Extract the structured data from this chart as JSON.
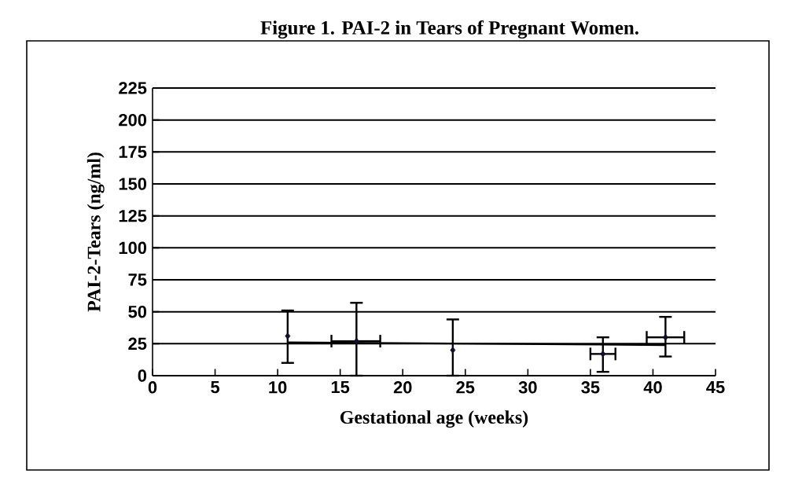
{
  "chart_data": {
    "type": "scatter",
    "title": "Figure 1. PAI-2 in Tears of Pregnant Women.",
    "xlabel": "Gestational age (weeks)",
    "ylabel": "PAI-2-Tears (ng/ml)",
    "xlim": [
      0,
      45
    ],
    "xticks": [
      0,
      5,
      10,
      15,
      20,
      25,
      30,
      35,
      40,
      45
    ],
    "ylim": [
      0,
      225
    ],
    "yticks": [
      0,
      25,
      50,
      75,
      100,
      125,
      150,
      175,
      200,
      225
    ],
    "grid": "y",
    "marker": "diamond",
    "series": [
      {
        "color": "#10102a",
        "x": [
          10.8,
          16.3,
          24,
          36,
          41
        ],
        "values": [
          31,
          27,
          20,
          17,
          30
        ],
        "errors": [
          [
            10,
            51
          ],
          [
            0,
            57
          ],
          [
            0,
            44
          ],
          [
            3,
            30
          ],
          [
            15,
            46
          ]
        ],
        "xerrors": [
          null,
          [
            14.3,
            18.2
          ],
          null,
          [
            35,
            37
          ],
          [
            39.5,
            42.5
          ]
        ]
      },
      {
        "type": "line",
        "marker": "none",
        "color": "#000000",
        "x": [
          10.8,
          41
        ],
        "values": [
          26,
          24
        ]
      }
    ]
  }
}
